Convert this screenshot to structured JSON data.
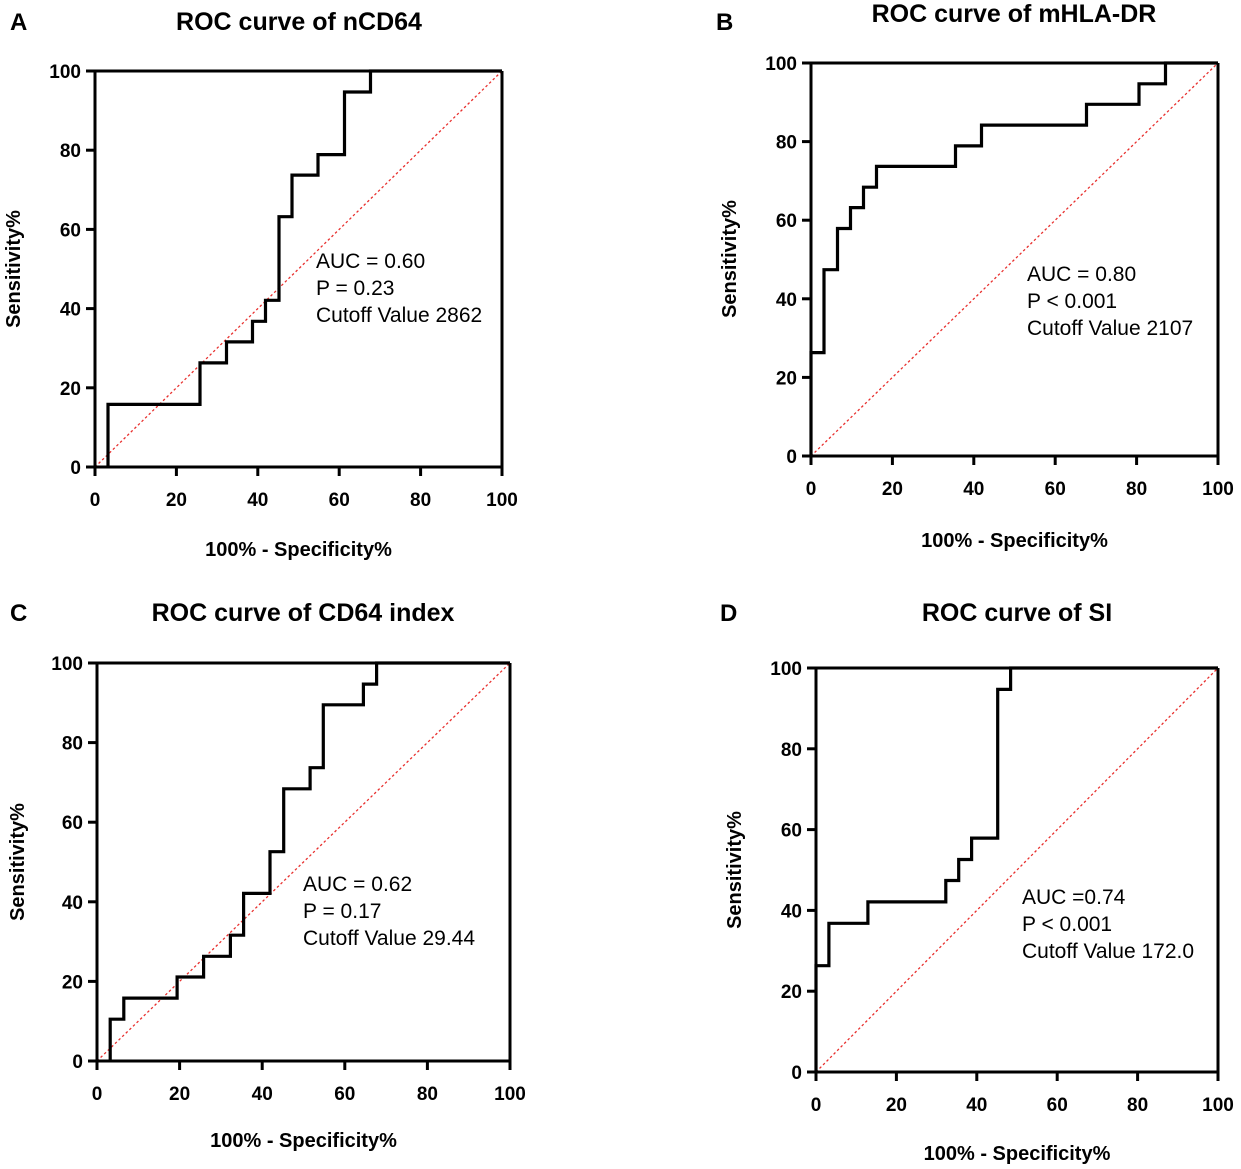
{
  "chart_data": [
    {
      "type": "line",
      "panel": "A",
      "title": "ROC curve of nCD64",
      "xlabel": "100% - Specificity%",
      "ylabel": "Sensitivity%",
      "xlim": [
        0,
        100
      ],
      "ylim": [
        0,
        100
      ],
      "ticks": [
        "0",
        "20",
        "40",
        "60",
        "80",
        "100"
      ],
      "annotations": [
        "AUC = 0.60",
        "P = 0.23",
        "Cutoff Value 2862"
      ],
      "series": [
        {
          "name": "ROC",
          "x": [
            3.2,
            3.2,
            3.2,
            25.8,
            25.8,
            32.3,
            32.3,
            38.7,
            38.7,
            41.9,
            41.9,
            45.2,
            45.2,
            48.4,
            48.4,
            54.8,
            54.8,
            61.3,
            61.3,
            64.5,
            64.5,
            67.7,
            67.7,
            100
          ],
          "y": [
            0,
            5.3,
            15.8,
            15.8,
            26.3,
            26.3,
            31.6,
            31.6,
            36.8,
            36.8,
            42.1,
            42.1,
            63.2,
            63.2,
            73.7,
            73.7,
            78.9,
            78.9,
            94.7,
            94.7,
            94.7,
            94.7,
            100,
            100
          ]
        },
        {
          "name": "Reference",
          "x": [
            0,
            100
          ],
          "y": [
            0,
            100
          ]
        }
      ]
    },
    {
      "type": "line",
      "panel": "B",
      "title": "ROC curve of mHLA-DR",
      "xlabel": "100% - Specificity%",
      "ylabel": "Sensitivity%",
      "xlim": [
        0,
        100
      ],
      "ylim": [
        0,
        100
      ],
      "ticks": [
        "0",
        "20",
        "40",
        "60",
        "80",
        "100"
      ],
      "annotations": [
        "AUC = 0.80",
        "P < 0.001",
        "Cutoff Value 2107"
      ],
      "series": [
        {
          "name": "ROC",
          "x": [
            0,
            0,
            3.2,
            3.2,
            6.5,
            6.5,
            9.7,
            9.7,
            12.9,
            12.9,
            16.1,
            16.1,
            35.5,
            35.5,
            41.9,
            41.9,
            67.7,
            67.7,
            80.6,
            80.6,
            87.1,
            87.1,
            100
          ],
          "y": [
            0,
            26.3,
            26.3,
            47.4,
            47.4,
            57.9,
            57.9,
            63.2,
            63.2,
            68.4,
            68.4,
            73.7,
            73.7,
            78.9,
            78.9,
            84.2,
            84.2,
            89.5,
            89.5,
            94.7,
            94.7,
            100,
            100
          ]
        },
        {
          "name": "Reference",
          "x": [
            0,
            100
          ],
          "y": [
            0,
            100
          ]
        }
      ]
    },
    {
      "type": "line",
      "panel": "C",
      "title": "ROC curve of CD64 index",
      "xlabel": "100% - Specificity%",
      "ylabel": "Sensitivity%",
      "xlim": [
        0,
        100
      ],
      "ylim": [
        0,
        100
      ],
      "ticks": [
        "0",
        "20",
        "40",
        "60",
        "80",
        "100"
      ],
      "annotations": [
        "AUC = 0.62",
        "P = 0.17",
        "Cutoff Value 29.44"
      ],
      "series": [
        {
          "name": "ROC",
          "x": [
            3.2,
            3.2,
            6.5,
            6.5,
            19.4,
            19.4,
            25.8,
            25.8,
            32.3,
            32.3,
            35.5,
            35.5,
            41.9,
            41.9,
            45.2,
            45.2,
            51.6,
            51.6,
            54.8,
            54.8,
            64.5,
            64.5,
            67.7,
            67.7,
            100
          ],
          "y": [
            0,
            10.5,
            10.5,
            15.8,
            15.8,
            21.1,
            21.1,
            26.3,
            26.3,
            31.6,
            31.6,
            42.1,
            42.1,
            52.6,
            52.6,
            68.4,
            68.4,
            73.7,
            73.7,
            89.5,
            89.5,
            94.7,
            94.7,
            100,
            100
          ]
        },
        {
          "name": "Reference",
          "x": [
            0,
            100
          ],
          "y": [
            0,
            100
          ]
        }
      ]
    },
    {
      "type": "line",
      "panel": "D",
      "title": "ROC curve of SI",
      "xlabel": "100% - Specificity%",
      "ylabel": "Sensitivity%",
      "xlim": [
        0,
        100
      ],
      "ylim": [
        0,
        100
      ],
      "ticks": [
        "0",
        "20",
        "40",
        "60",
        "80",
        "100"
      ],
      "annotations": [
        "AUC =0.74",
        "P < 0.001",
        "Cutoff Value 172.0"
      ],
      "series": [
        {
          "name": "ROC",
          "x": [
            0,
            0,
            3.2,
            3.2,
            12.9,
            12.9,
            32.3,
            32.3,
            35.5,
            35.5,
            38.7,
            38.7,
            45.2,
            45.2,
            48.4,
            48.4,
            100
          ],
          "y": [
            0,
            26.3,
            26.3,
            36.8,
            36.8,
            42.1,
            42.1,
            47.4,
            47.4,
            52.6,
            52.6,
            57.9,
            57.9,
            94.7,
            94.7,
            100,
            100
          ]
        },
        {
          "name": "Reference",
          "x": [
            0,
            100
          ],
          "y": [
            0,
            100
          ]
        }
      ]
    }
  ],
  "colors": {
    "roc": "#000000",
    "reference": "#e8302e",
    "axis": "#000000"
  }
}
